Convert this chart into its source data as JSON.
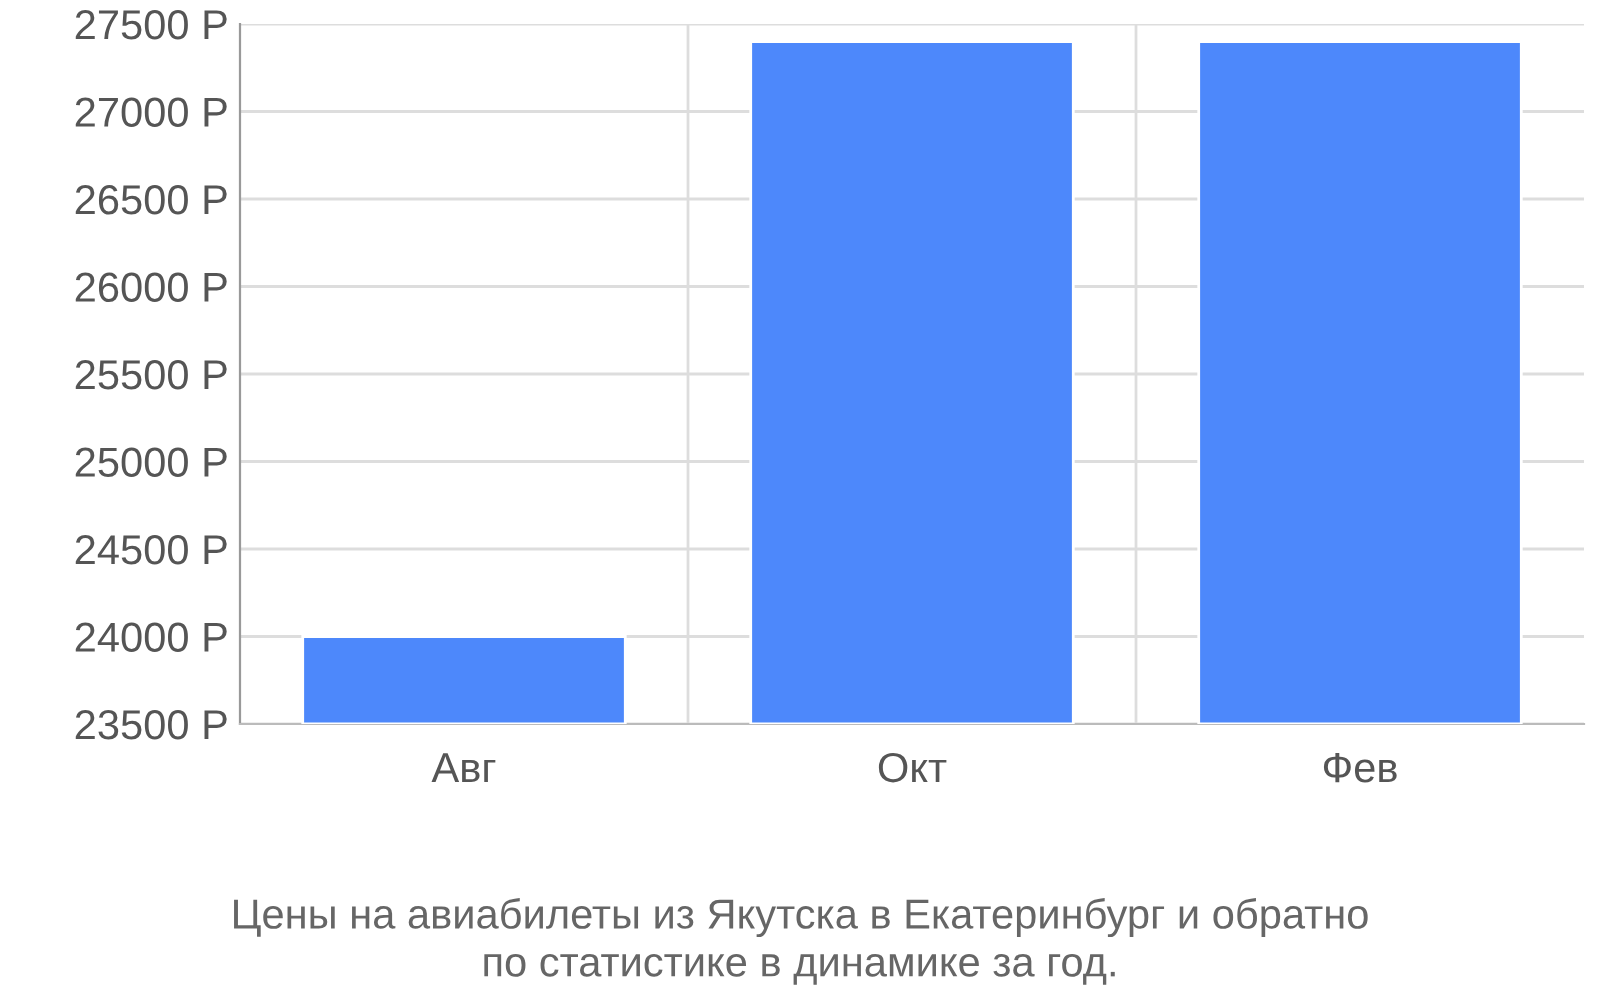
{
  "chart_data": {
    "type": "bar",
    "title": "Цены на авиабилеты из Якутска в Екатеринбург и обратно\nпо статистике в динамике за год.",
    "categories": [
      "Авг",
      "Окт",
      "Фев"
    ],
    "values": [
      24000,
      27400,
      27400
    ],
    "color": "#4d88fb",
    "ylim": [
      23500,
      27500
    ],
    "yticks": [
      {
        "value": 23500,
        "label": "23500 Р"
      },
      {
        "value": 24000,
        "label": "24000 Р"
      },
      {
        "value": 24500,
        "label": "24500 Р"
      },
      {
        "value": 25000,
        "label": "25000 Р"
      },
      {
        "value": 25500,
        "label": "25500 Р"
      },
      {
        "value": 26000,
        "label": "26000 Р"
      },
      {
        "value": 26500,
        "label": "26500 Р"
      },
      {
        "value": 27000,
        "label": "27000 Р"
      },
      {
        "value": 27500,
        "label": "27500 Р"
      }
    ],
    "grid": true,
    "legend": false
  }
}
